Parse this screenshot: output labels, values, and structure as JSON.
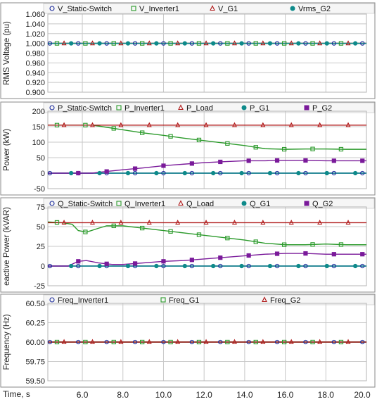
{
  "colors": {
    "static_switch": "#1a2a9a",
    "inverter1": "#2b9a2b",
    "load_g1_red": "#b01818",
    "g1_teal": "#0e8a8a",
    "g2_purple": "#7a1a9a",
    "grid": "#c8c8c8",
    "frame": "#888888"
  },
  "x_axis": {
    "label": "Time, s",
    "ticks": [
      "6.0",
      "8.0",
      "10.0",
      "12.0",
      "14.0",
      "16.0",
      "18.0",
      "20.0"
    ],
    "tick_values": [
      6,
      8,
      10,
      12,
      14,
      16,
      18,
      20
    ],
    "range": [
      4.3,
      20
    ]
  },
  "chart_data": [
    {
      "type": "line",
      "ylabel": "RMS Voltage (pu)",
      "ylim": [
        0.9,
        1.06
      ],
      "yticks": [
        "1.060",
        "1.040",
        "1.020",
        "1.000",
        "0.980",
        "0.960",
        "0.940",
        "0.920",
        "0.900"
      ],
      "ytick_values": [
        1.06,
        1.04,
        1.02,
        1.0,
        0.98,
        0.96,
        0.94,
        0.92,
        0.9
      ],
      "legend": [
        "V_Static-Switch",
        "V_Inverter1",
        "V_G1",
        "Vrms_G2"
      ],
      "series": [
        {
          "name": "V_Static-Switch",
          "color_key": "static_switch",
          "marker": "circle",
          "x": [
            4.3,
            20
          ],
          "values": [
            1.0,
            1.0
          ]
        },
        {
          "name": "V_Inverter1",
          "color_key": "inverter1",
          "marker": "square",
          "x": [
            4.3,
            20
          ],
          "values": [
            1.0,
            1.0
          ]
        },
        {
          "name": "V_G1",
          "color_key": "load_g1_red",
          "marker": "triangle",
          "x": [
            4.3,
            20
          ],
          "values": [
            1.0,
            1.0
          ]
        },
        {
          "name": "Vrms_G2",
          "color_key": "g1_teal",
          "marker": "dot",
          "x": [
            4.3,
            20
          ],
          "values": [
            1.0,
            1.0
          ]
        }
      ]
    },
    {
      "type": "line",
      "ylabel": "Power (kW)",
      "ylim": [
        -50,
        200
      ],
      "yticks": [
        "200",
        "150",
        "100",
        "50",
        "0",
        "-50"
      ],
      "ytick_values": [
        200,
        150,
        100,
        50,
        0,
        -50
      ],
      "legend": [
        "P_Static-Switch",
        "P_Inverter1",
        "P_Load",
        "P_G1",
        "P_G2"
      ],
      "series": [
        {
          "name": "P_Static-Switch",
          "color_key": "static_switch",
          "marker": "circle",
          "x": [
            4.3,
            20
          ],
          "values": [
            0,
            0
          ]
        },
        {
          "name": "P_Inverter1",
          "color_key": "inverter1",
          "marker": "square",
          "x": [
            4.3,
            6.5,
            7.0,
            8.0,
            9.0,
            10.0,
            11.0,
            12.0,
            13.0,
            14.0,
            14.5,
            15.0,
            15.5,
            16.0,
            17.0,
            18.0,
            19.0,
            20.0
          ],
          "values": [
            155,
            155,
            150,
            140,
            130,
            122,
            113,
            105,
            97,
            89,
            84,
            79,
            78,
            77,
            78,
            78,
            77,
            77
          ]
        },
        {
          "name": "P_Load",
          "color_key": "load_g1_red",
          "marker": "triangle",
          "x": [
            4.3,
            20
          ],
          "values": [
            155,
            155
          ]
        },
        {
          "name": "P_G1",
          "color_key": "g1_teal",
          "marker": "dot",
          "x": [
            4.3,
            20
          ],
          "values": [
            0,
            0
          ]
        },
        {
          "name": "P_G2",
          "color_key": "g2_purple",
          "marker": "square-filled",
          "x": [
            4.3,
            6.5,
            7.0,
            8.0,
            9.0,
            10.0,
            11.0,
            12.0,
            13.0,
            14.0,
            15.0,
            15.5,
            16.0,
            17.0,
            18.0,
            19.0,
            20.0
          ],
          "values": [
            0,
            0,
            4,
            11,
            17,
            24,
            29,
            34,
            37,
            40,
            40,
            41,
            41,
            41,
            40,
            40,
            40
          ]
        }
      ]
    },
    {
      "type": "line",
      "ylabel": "eactive Power (kVAR)",
      "ylim": [
        -25,
        75
      ],
      "yticks": [
        "75",
        "50",
        "25",
        "0",
        "-25"
      ],
      "ytick_values": [
        75,
        50,
        25,
        0,
        -25
      ],
      "legend": [
        "Q_Static-Switch",
        "Q_Inverter1",
        "Q_Load",
        "Q_G1",
        "Q_G2"
      ],
      "series": [
        {
          "name": "Q_Static-Switch",
          "color_key": "static_switch",
          "marker": "circle",
          "x": [
            4.3,
            20
          ],
          "values": [
            0,
            0
          ]
        },
        {
          "name": "Q_Inverter1",
          "color_key": "inverter1",
          "marker": "square",
          "x": [
            4.3,
            5.0,
            5.5,
            5.8,
            6.2,
            6.8,
            7.2,
            8.0,
            9.0,
            10.0,
            11.0,
            12.0,
            13.0,
            14.0,
            15.0,
            16.0,
            17.0,
            18.0,
            19.0,
            20.0
          ],
          "values": [
            56,
            55,
            53,
            45,
            43,
            48,
            51,
            51,
            48,
            45,
            42,
            39,
            36,
            33,
            29,
            27,
            27,
            28,
            27,
            27
          ]
        },
        {
          "name": "Q_Load",
          "color_key": "load_g1_red",
          "marker": "triangle",
          "x": [
            4.3,
            20
          ],
          "values": [
            55,
            55
          ]
        },
        {
          "name": "Q_G1",
          "color_key": "g1_teal",
          "marker": "dot",
          "x": [
            4.3,
            20
          ],
          "values": [
            0,
            0
          ]
        },
        {
          "name": "Q_G2",
          "color_key": "g2_purple",
          "marker": "square-filled",
          "x": [
            4.3,
            5.3,
            5.8,
            6.2,
            6.8,
            7.5,
            8.0,
            9.0,
            10.0,
            11.0,
            12.0,
            13.0,
            14.0,
            15.0,
            16.0,
            17.0,
            18.0,
            19.0,
            20.0
          ],
          "values": [
            0,
            0,
            6,
            7,
            4,
            2,
            2,
            4,
            6,
            7,
            9,
            11,
            13,
            15,
            16,
            16,
            15,
            15,
            15
          ]
        }
      ]
    },
    {
      "type": "line",
      "ylabel": "Frequency (Hz)",
      "ylim": [
        59.5,
        60.5
      ],
      "yticks": [
        "60.50",
        "60.25",
        "60.00",
        "59.75",
        "59.50"
      ],
      "ytick_values": [
        60.5,
        60.25,
        60.0,
        59.75,
        59.5
      ],
      "legend": [
        "Freq_Inverter1",
        "Freq_G1",
        "Freq_G2"
      ],
      "series": [
        {
          "name": "Freq_Inverter1",
          "color_key": "static_switch",
          "marker": "circle",
          "x": [
            4.3,
            20
          ],
          "values": [
            60.0,
            60.0
          ]
        },
        {
          "name": "Freq_G1",
          "color_key": "inverter1",
          "marker": "square",
          "x": [
            4.3,
            20
          ],
          "values": [
            60.0,
            60.0
          ]
        },
        {
          "name": "Freq_G2",
          "color_key": "load_g1_red",
          "marker": "triangle",
          "x": [
            4.3,
            20
          ],
          "values": [
            60.0,
            60.0
          ]
        }
      ]
    }
  ]
}
